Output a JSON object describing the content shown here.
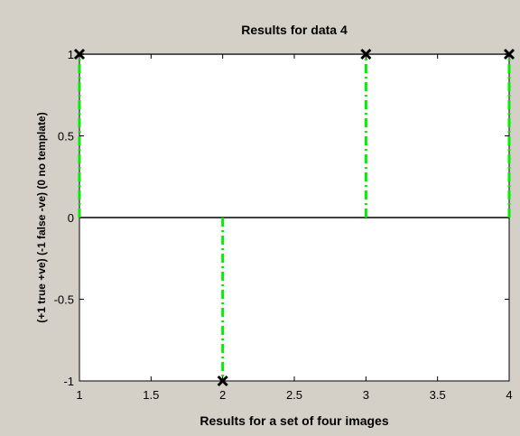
{
  "figure": {
    "background": "#d4d0c8",
    "plot_background": "#ffffff"
  },
  "chart_data": {
    "type": "stem",
    "title": "Results for data 4",
    "xlabel": "Results for a set of four images",
    "ylabel": "(+1 true +ve) (-1 false -ve) (0 no template)",
    "xlim": [
      1,
      4
    ],
    "ylim": [
      -1,
      1
    ],
    "xticks": [
      "1",
      "1.5",
      "2",
      "2.5",
      "3",
      "3.5",
      "4"
    ],
    "yticks": [
      "-1",
      "-0.5",
      "0",
      "0.5",
      "1"
    ],
    "grid": false,
    "baseline": 0,
    "series": [
      {
        "x": [
          1,
          2,
          3,
          4
        ],
        "y": [
          1,
          -1,
          1,
          1
        ],
        "stem_color": "#00ee00",
        "stem_style": "dash-dot",
        "marker": "x",
        "marker_color": "#000000"
      }
    ]
  }
}
